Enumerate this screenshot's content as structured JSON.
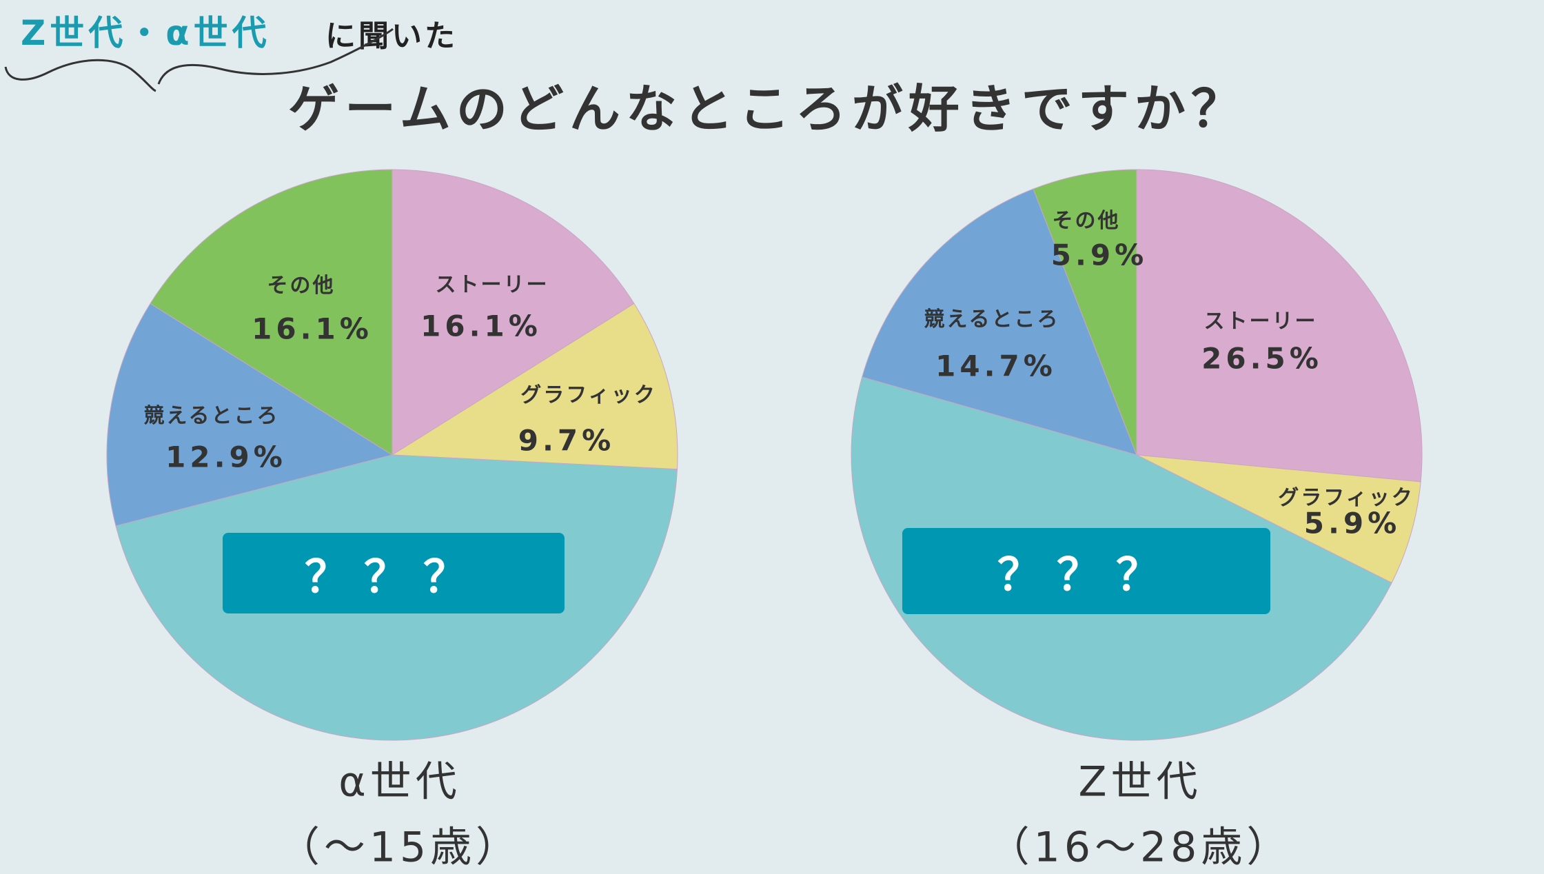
{
  "header": {
    "subtitle_highlight": "Z世代・α世代",
    "subtitle_rest": "に聞いた",
    "title": "ゲームのどんなところが好きですか？"
  },
  "colors": {
    "background": "#E2ECEE",
    "accent": "#1A9BB0",
    "hidden_box": "#0097B2"
  },
  "chart_data": [
    {
      "type": "pie",
      "title": "α世代",
      "subtitle": "（〜15歳）",
      "start": "top, clockwise",
      "slices": [
        {
          "label": "ストーリー",
          "value": 16.1,
          "value_label": "16.1%",
          "color": "#D9ABCF"
        },
        {
          "label": "グラフィック",
          "value": 9.7,
          "value_label": "9.7%",
          "color": "#E8DE8A"
        },
        {
          "label": "？？？",
          "value": 45.2,
          "value_label": "",
          "color": "#81CAD0",
          "hidden": true
        },
        {
          "label": "競えるところ",
          "value": 12.9,
          "value_label": "12.9%",
          "color": "#72A5D6"
        },
        {
          "label": "その他",
          "value": 16.1,
          "value_label": "16.1%",
          "color": "#82C25D"
        }
      ]
    },
    {
      "type": "pie",
      "title": "Z世代",
      "subtitle": "（16〜28歳）",
      "start": "top, clockwise",
      "slices": [
        {
          "label": "ストーリー",
          "value": 26.5,
          "value_label": "26.5%",
          "color": "#D9ABCF"
        },
        {
          "label": "グラフィック",
          "value": 5.9,
          "value_label": "5.9%",
          "color": "#E8DE8A"
        },
        {
          "label": "？？？",
          "value": 47.0,
          "value_label": "",
          "color": "#81CAD0",
          "hidden": true
        },
        {
          "label": "競えるところ",
          "value": 14.7,
          "value_label": "14.7%",
          "color": "#72A5D6"
        },
        {
          "label": "その他",
          "value": 5.9,
          "value_label": "5.9%",
          "color": "#82C25D"
        }
      ]
    }
  ]
}
